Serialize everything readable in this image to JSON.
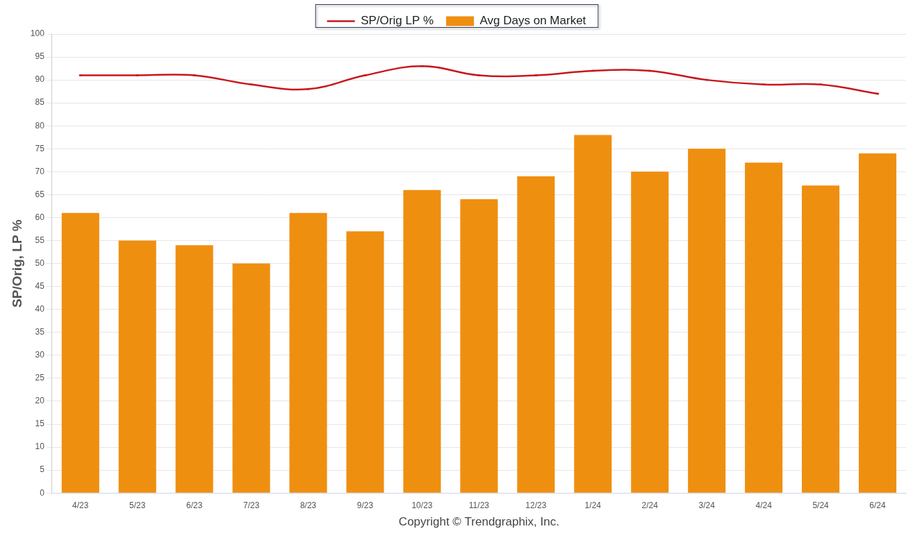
{
  "chart_data": {
    "type": "bar",
    "categories": [
      "4/23",
      "5/23",
      "6/23",
      "7/23",
      "8/23",
      "9/23",
      "10/23",
      "11/23",
      "12/23",
      "1/24",
      "2/24",
      "3/24",
      "4/24",
      "5/24",
      "6/24"
    ],
    "series": [
      {
        "name": "Avg Days on Market",
        "type": "bar",
        "color": "#ef8f10",
        "values": [
          61,
          55,
          54,
          50,
          61,
          57,
          66,
          64,
          69,
          78,
          70,
          75,
          72,
          67,
          74
        ]
      },
      {
        "name": "SP/Orig LP %",
        "type": "line",
        "color": "#c8171b",
        "line_style": "solid",
        "values": [
          91,
          91,
          91,
          89,
          88,
          91,
          93,
          91,
          91,
          92,
          92,
          90,
          89,
          89,
          87
        ]
      }
    ],
    "y_label": "SP/Orig, LP %",
    "x_label": "Copyright © Trendgraphix, Inc.",
    "ylim": [
      0,
      100
    ],
    "yticks": [
      0,
      5,
      10,
      15,
      20,
      25,
      30,
      35,
      40,
      45,
      50,
      55,
      60,
      65,
      70,
      75,
      80,
      85,
      90,
      95,
      100
    ],
    "grid": true,
    "legend": "top"
  }
}
